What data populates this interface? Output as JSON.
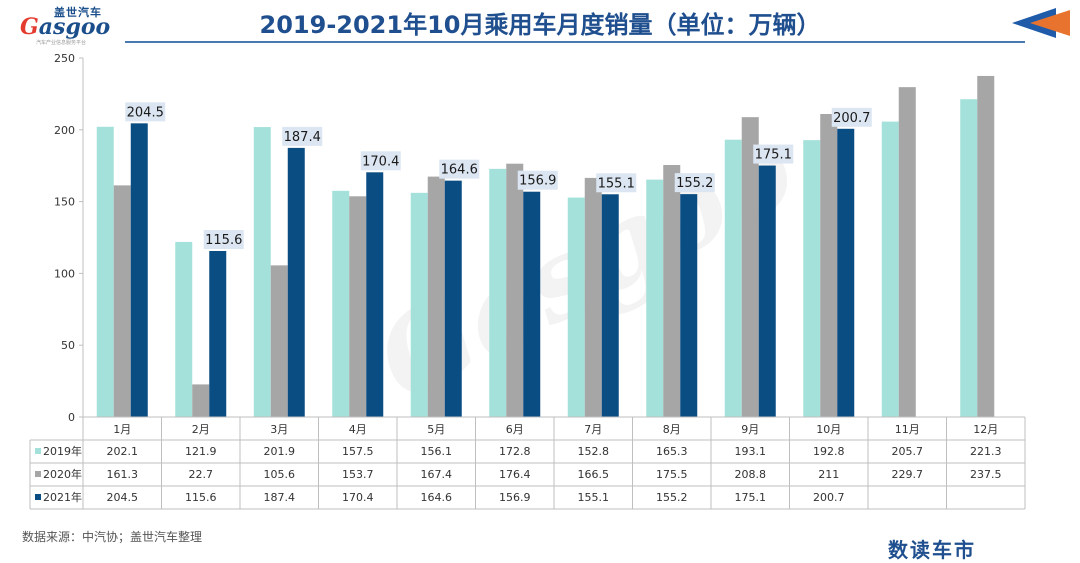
{
  "header": {
    "title": "2019-2021年10月乘用车月度销量（单位：万辆）",
    "logo_cn": "盖世汽车",
    "logo_en_first": "G",
    "logo_en_rest": "asgoo",
    "logo_tagline": "汽车产业信息服务平台"
  },
  "footer": {
    "source": "数据来源：中汽协；盖世汽车整理",
    "brand": "数读车市"
  },
  "watermark": "Gasgoo",
  "colors": {
    "s2019": "#a3e1da",
    "s2020": "#a6a6a6",
    "s2021": "#0a4d83",
    "title": "#1f4f8e",
    "accent": "#e8732e",
    "label_bg": "#dce6f2"
  },
  "chart_data": {
    "type": "bar",
    "categories": [
      "1月",
      "2月",
      "3月",
      "4月",
      "5月",
      "6月",
      "7月",
      "8月",
      "9月",
      "10月",
      "11月",
      "12月"
    ],
    "series": [
      {
        "name": "2019年",
        "values": [
          "202.1",
          "121.9",
          "201.9",
          "157.5",
          "156.1",
          "172.8",
          "152.8",
          "165.3",
          "193.1",
          "192.8",
          "205.7",
          "221.3"
        ]
      },
      {
        "name": "2020年",
        "values": [
          "161.3",
          "22.7",
          "105.6",
          "153.7",
          "167.4",
          "176.4",
          "166.5",
          "175.5",
          "208.8",
          "211",
          "229.7",
          "237.5"
        ]
      },
      {
        "name": "2021年",
        "values": [
          "204.5",
          "115.6",
          "187.4",
          "170.4",
          "164.6",
          "156.9",
          "155.1",
          "155.2",
          "175.1",
          "200.7",
          null,
          null
        ]
      }
    ],
    "data_labels_series": "2021年",
    "ylim": [
      0,
      250
    ],
    "yticks": [
      "0",
      "50",
      "100",
      "150",
      "200",
      "250"
    ],
    "grid": false,
    "legend": "data-table"
  }
}
